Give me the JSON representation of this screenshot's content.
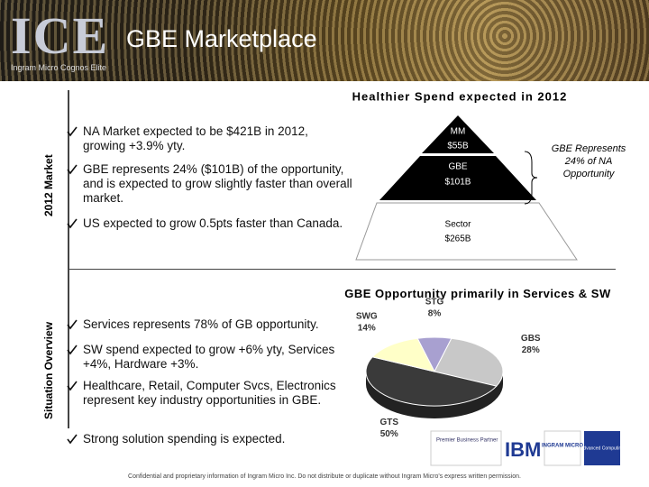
{
  "header": {
    "logo": "ICE",
    "logo_subtitle": "Ingram Micro Cognos Elite",
    "title": "GBE Marketplace"
  },
  "side_labels": [
    "2012 Market",
    "Situation Overview"
  ],
  "market": {
    "bullets": [
      "NA Market expected to be $421B in 2012, growing +3.9% yty.",
      "GBE represents 24% ($101B) of the opportunity, and is expected to grow slightly faster than overall market.",
      "US expected to grow 0.5pts faster than Canada."
    ],
    "pyramid_title": "Healthier Spend expected in 2012",
    "pyramid": [
      {
        "name": "MM",
        "amount": "$55B"
      },
      {
        "name": "GBE",
        "amount": "$101B"
      },
      {
        "name": "Sector",
        "amount": "$265B"
      }
    ],
    "brace_note": "GBE Represents 24% of NA Opportunity"
  },
  "opportunity": {
    "bullets": [
      "Services represents 78% of GB opportunity.",
      "SW spend expected to grow +6% yty, Services +4%, Hardware +3%.",
      "Healthcare, Retail, Computer Svcs, Electronics represent key industry opportunities in GBE.",
      "Strong solution spending is expected."
    ]
  },
  "chart_data": {
    "type": "pie",
    "title": "GBE Opportunity primarily in Services & SW",
    "categories": [
      "STG",
      "GBS",
      "GTS",
      "SWG"
    ],
    "values": [
      8,
      28,
      50,
      14
    ],
    "value_labels": [
      "8%",
      "28%",
      "50%",
      "14%"
    ],
    "colors": [
      "#a8a0d0",
      "#c8c8c8",
      "#3a3a3a",
      "#ffffc8"
    ]
  },
  "logos": [
    "Premier Business Partner",
    "IBM",
    "INGRAM MICRO",
    "Advanced Computing"
  ],
  "footer": "Confidential and proprietary information of Ingram Micro Inc. Do not distribute or duplicate without Ingram Micro's express written permission."
}
